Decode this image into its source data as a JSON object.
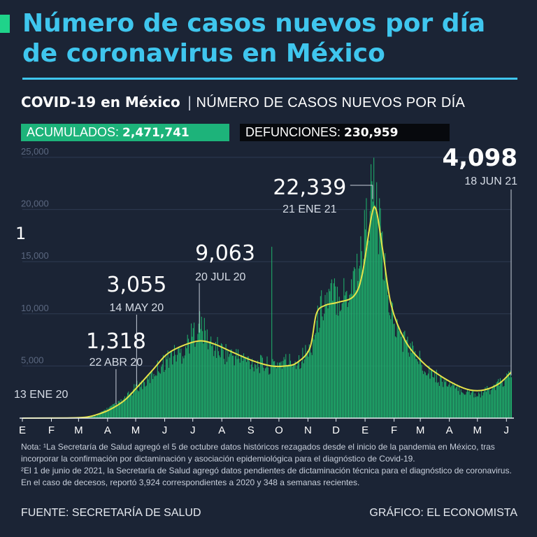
{
  "header": {
    "title": "Número de casos nuevos por día de coronavirus en México",
    "subtitle_strong": "COVID-19 en México",
    "subtitle_sep": "|",
    "subtitle_desc": "NÚMERO DE CASOS NUEVOS POR DÍA"
  },
  "stats": {
    "acumulados_label": "ACUMULADOS:",
    "acumulados_value": "2,471,741",
    "defunciones_label": "DEFUNCIONES:",
    "defunciones_value": "230,959"
  },
  "colors": {
    "background": "#1b2435",
    "title": "#3fc6ee",
    "bars": "#1fb06c",
    "trend": "#e6e34a",
    "badge_green": "#1db37a",
    "badge_black": "#07090d"
  },
  "chart_data": {
    "type": "bar",
    "title": "",
    "xlabel": "",
    "ylabel": "",
    "ylim": [
      0,
      25000
    ],
    "y_ticks": [
      5000,
      10000,
      15000,
      20000,
      25000
    ],
    "y_tick_labels": [
      "5,000",
      "10,000",
      "15,000",
      "20,000",
      "25,000"
    ],
    "grid": true,
    "x_range": [
      "2020-01-13",
      "2021-06-18"
    ],
    "x_ticks": [
      {
        "date": "2020-01-13",
        "label": "E"
      },
      {
        "date": "2020-02-13",
        "label": "F"
      },
      {
        "date": "2020-03-13",
        "label": "M"
      },
      {
        "date": "2020-04-13",
        "label": "A"
      },
      {
        "date": "2020-05-13",
        "label": "M"
      },
      {
        "date": "2020-06-13",
        "label": "J"
      },
      {
        "date": "2020-07-13",
        "label": "J"
      },
      {
        "date": "2020-08-13",
        "label": "A"
      },
      {
        "date": "2020-09-13",
        "label": "S"
      },
      {
        "date": "2020-10-13",
        "label": "O"
      },
      {
        "date": "2020-11-13",
        "label": "N"
      },
      {
        "date": "2020-12-13",
        "label": "D"
      },
      {
        "date": "2021-01-13",
        "label": "E"
      },
      {
        "date": "2021-02-13",
        "label": "F"
      },
      {
        "date": "2021-03-13",
        "label": "M"
      },
      {
        "date": "2021-04-13",
        "label": "A"
      },
      {
        "date": "2021-05-13",
        "label": "M"
      },
      {
        "date": "2021-06-13",
        "label": "J"
      }
    ],
    "daily_cases_approx": [
      [
        "2020-01-13",
        1
      ],
      [
        "2020-03-01",
        5
      ],
      [
        "2020-03-20",
        60
      ],
      [
        "2020-04-01",
        250
      ],
      [
        "2020-04-10",
        800
      ],
      [
        "2020-04-22",
        1318
      ],
      [
        "2020-05-01",
        1800
      ],
      [
        "2020-05-14",
        3055
      ],
      [
        "2020-05-25",
        3500
      ],
      [
        "2020-06-05",
        4800
      ],
      [
        "2020-06-20",
        6000
      ],
      [
        "2020-07-01",
        6300
      ],
      [
        "2020-07-20",
        9063
      ],
      [
        "2020-08-01",
        7000
      ],
      [
        "2020-08-15",
        6300
      ],
      [
        "2020-09-01",
        5800
      ],
      [
        "2020-09-20",
        5200
      ],
      [
        "2020-10-04",
        5000
      ],
      [
        "2020-10-05",
        14000
      ],
      [
        "2020-10-06",
        5200
      ],
      [
        "2020-10-20",
        5400
      ],
      [
        "2020-11-01",
        5500
      ],
      [
        "2020-11-15",
        6500
      ],
      [
        "2020-11-28",
        11000
      ],
      [
        "2020-12-10",
        11800
      ],
      [
        "2020-12-25",
        12000
      ],
      [
        "2021-01-08",
        15500
      ],
      [
        "2021-01-21",
        22339
      ],
      [
        "2021-01-28",
        18000
      ],
      [
        "2021-02-05",
        12000
      ],
      [
        "2021-02-15",
        8500
      ],
      [
        "2021-03-01",
        6800
      ],
      [
        "2021-03-15",
        5200
      ],
      [
        "2021-04-01",
        3800
      ],
      [
        "2021-04-15",
        3000
      ],
      [
        "2021-05-01",
        2500
      ],
      [
        "2021-05-15",
        2300
      ],
      [
        "2021-06-01",
        3000
      ],
      [
        "2021-06-18",
        4098
      ]
    ],
    "trend_approx": [
      [
        "2020-01-13",
        0
      ],
      [
        "2020-03-01",
        20
      ],
      [
        "2020-03-20",
        80
      ],
      [
        "2020-04-01",
        320
      ],
      [
        "2020-04-15",
        800
      ],
      [
        "2020-05-01",
        1700
      ],
      [
        "2020-05-15",
        3000
      ],
      [
        "2020-06-01",
        4700
      ],
      [
        "2020-06-15",
        6100
      ],
      [
        "2020-07-01",
        6900
      ],
      [
        "2020-07-20",
        7400
      ],
      [
        "2020-08-05",
        7100
      ],
      [
        "2020-08-25",
        6300
      ],
      [
        "2020-09-15",
        5500
      ],
      [
        "2020-10-05",
        5000
      ],
      [
        "2020-10-20",
        5000
      ],
      [
        "2020-11-01",
        5300
      ],
      [
        "2020-11-15",
        6700
      ],
      [
        "2020-11-22",
        10000
      ],
      [
        "2020-12-01",
        10800
      ],
      [
        "2020-12-15",
        11100
      ],
      [
        "2021-01-01",
        11700
      ],
      [
        "2021-01-10",
        13800
      ],
      [
        "2021-01-20",
        19400
      ],
      [
        "2021-01-25",
        19900
      ],
      [
        "2021-02-01",
        16000
      ],
      [
        "2021-02-10",
        10800
      ],
      [
        "2021-02-25",
        7400
      ],
      [
        "2021-03-15",
        5400
      ],
      [
        "2021-04-01",
        4200
      ],
      [
        "2021-04-20",
        3200
      ],
      [
        "2021-05-05",
        2700
      ],
      [
        "2021-05-20",
        2700
      ],
      [
        "2021-06-05",
        3300
      ],
      [
        "2021-06-18",
        4400
      ]
    ],
    "annotations": [
      {
        "date": "2020-01-13",
        "value_label": "1",
        "date_label": "13 ENE 20"
      },
      {
        "date": "2020-04-22",
        "value_label": "1,318",
        "date_label": "22 ABR 20"
      },
      {
        "date": "2020-05-14",
        "value_label": "3,055",
        "date_label": "14 MAY 20"
      },
      {
        "date": "2020-07-20",
        "value_label": "9,063",
        "date_label": "20 JUL 20"
      },
      {
        "date": "2021-01-21",
        "value_label": "22,339",
        "date_label": "21 ENE 21"
      },
      {
        "date": "2021-06-18",
        "value_label": "4,098",
        "date_label": "18 JUN 21"
      }
    ]
  },
  "notes": {
    "line1": "Nota: ¹La Secretaría de Salud agregó el 5 de octubre datos históricos rezagados desde el inicio de la pandemia en México, tras incorporar la confirmación por dictaminación y asociación epidemiológica para el diagnóstico de Covid-19.",
    "line2": "²El 1 de junio de 2021, la Secretaría de Salud agregó datos pendientes de dictaminación técnica para el diagnóstico de coronavirus. En el caso de decesos, reportó 3,924 correspondientes a 2020 y 348 a semanas recientes."
  },
  "footer": {
    "source": "FUENTE: SECRETARÍA DE SALUD",
    "credit": "GRÁFICO: EL ECONOMISTA"
  }
}
